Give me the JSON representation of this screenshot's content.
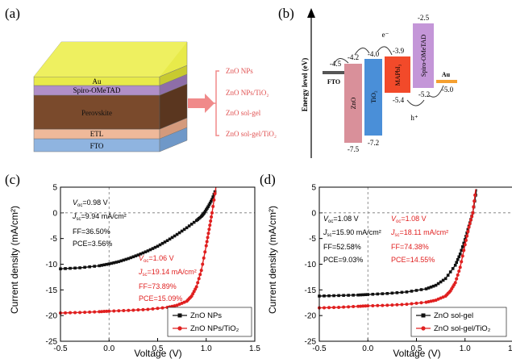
{
  "panels": {
    "a": {
      "label": "(a)",
      "layers": [
        "Au",
        "Spiro-OMeTAD",
        "Perovskite",
        "ETL",
        "FTO"
      ],
      "etl_options": [
        "ZnO NPs",
        "ZnO NPs/TiO₂",
        "ZnO sol-gel",
        "ZnO sol-gel/TiO₂"
      ],
      "colors": {
        "au": "#e8ea4a",
        "spiro": "#b08fc8",
        "perovskite": "#7a4a2c",
        "etl": "#efb99a",
        "fto": "#8fb4e0",
        "arrow": "#f08a8a"
      }
    },
    "b": {
      "label": "(b)",
      "ylabel": "Energy level (eV)",
      "carriers": {
        "electron": "e⁻",
        "hole": "h⁺"
      },
      "materials": [
        {
          "name": "FTO",
          "top": -4.5,
          "bottom": null,
          "color": "#555555",
          "top_label": "-4.5",
          "bottom_label": ""
        },
        {
          "name": "ZnO",
          "top": -4.2,
          "bottom": -7.5,
          "color": "#d9909a",
          "top_label": "-4.2",
          "bottom_label": "-7.5"
        },
        {
          "name": "TiO₂",
          "top": -4.0,
          "bottom": -7.2,
          "color": "#4a8fd8",
          "top_label": "-4.0",
          "bottom_label": "-7.2"
        },
        {
          "name": "MAPbI₃",
          "top": -3.9,
          "bottom": -5.4,
          "color": "#f24a2a",
          "top_label": "-3.9",
          "bottom_label": "-5.4"
        },
        {
          "name": "Spiro-OMeTAD",
          "top": -2.5,
          "bottom": -5.2,
          "color": "#c496d8",
          "top_label": "-2.5",
          "bottom_label": "-5.2"
        },
        {
          "name": "Au",
          "top": -5.0,
          "bottom": null,
          "color": "#f5a030",
          "top_label": "",
          "bottom_label": "-5.0"
        }
      ]
    },
    "c": {
      "label": "(c)",
      "ann1": {
        "voc_val": "=0.98 V",
        "jsc_val": "=9.94 mA/cm²",
        "ff": "FF=36.50%",
        "pce": "PCE=3.56%"
      },
      "ann2": {
        "voc_val": "=1.06 V",
        "jsc_val": "=19.14 mA/cm²",
        "ff": "FF=73.89%",
        "pce": "PCE=15.09%"
      }
    },
    "d": {
      "label": "(d)",
      "ann1": {
        "voc_val": "=1.08 V",
        "jsc_val": "=15.90 mA/cm²",
        "ff": "FF=52.58%",
        "pce": "PCE=9.03%"
      },
      "ann2": {
        "voc_val": "=1.08 V",
        "jsc_val": "=18.11 mA/cm²",
        "ff": "FF=74.38%",
        "pce": "PCE=14.55%"
      }
    }
  },
  "chart_data": [
    {
      "type": "line",
      "panel": "c",
      "xlabel": "Voltage (V)",
      "ylabel": "Current density (mA/cm²)",
      "xlim": [
        -0.5,
        1.5
      ],
      "ylim": [
        -25,
        5
      ],
      "xticks": [
        -0.5,
        0.0,
        0.5,
        1.0,
        1.5
      ],
      "yticks": [
        5,
        0,
        -5,
        -10,
        -15,
        -20,
        -25
      ],
      "legend_position": "bottom-right",
      "series": [
        {
          "name": "ZnO NPs",
          "color": "#111111",
          "x": [
            -0.5,
            -0.3,
            -0.1,
            0.0,
            0.1,
            0.2,
            0.3,
            0.4,
            0.5,
            0.6,
            0.7,
            0.8,
            0.9,
            0.95,
            0.98,
            1.02,
            1.06,
            1.1
          ],
          "y": [
            -10.9,
            -10.7,
            -10.3,
            -9.94,
            -9.5,
            -8.9,
            -8.2,
            -7.4,
            -6.5,
            -5.4,
            -4.2,
            -2.9,
            -1.5,
            -0.7,
            0.0,
            1.2,
            2.6,
            4.6
          ]
        },
        {
          "name": "ZnO NPs/TiO₂",
          "color": "#e02020",
          "x": [
            -0.5,
            -0.3,
            -0.1,
            0.0,
            0.2,
            0.4,
            0.6,
            0.7,
            0.8,
            0.85,
            0.9,
            0.95,
            1.0,
            1.03,
            1.06,
            1.1
          ],
          "y": [
            -19.5,
            -19.4,
            -19.25,
            -19.14,
            -19.0,
            -18.8,
            -18.4,
            -18.0,
            -17.2,
            -16.2,
            -14.4,
            -11.2,
            -6.4,
            -3.2,
            0.0,
            5.0
          ]
        }
      ]
    },
    {
      "type": "line",
      "panel": "d",
      "xlabel": "Voltage (V)",
      "ylabel": "Current density (mA/cm²)",
      "xlim": [
        -0.5,
        1.5
      ],
      "ylim": [
        -25,
        5
      ],
      "xticks": [
        -0.5,
        0.0,
        0.5,
        1.0,
        1.5
      ],
      "yticks": [
        5,
        0,
        -5,
        -10,
        -15,
        -20,
        -25
      ],
      "legend_position": "bottom-right",
      "series": [
        {
          "name": "ZnO sol-gel",
          "color": "#111111",
          "x": [
            -0.5,
            -0.3,
            -0.1,
            0.0,
            0.2,
            0.4,
            0.6,
            0.7,
            0.8,
            0.9,
            0.95,
            1.0,
            1.04,
            1.08,
            1.12
          ],
          "y": [
            -16.2,
            -16.1,
            -16.0,
            -15.9,
            -15.7,
            -15.4,
            -14.8,
            -14.1,
            -12.8,
            -10.2,
            -8.0,
            -5.2,
            -2.6,
            0.0,
            4.6
          ]
        },
        {
          "name": "ZnO sol-gel/TiO₂",
          "color": "#e02020",
          "x": [
            -0.5,
            -0.3,
            -0.1,
            0.0,
            0.2,
            0.4,
            0.6,
            0.7,
            0.8,
            0.85,
            0.9,
            0.95,
            1.0,
            1.04,
            1.08,
            1.11
          ],
          "y": [
            -18.5,
            -18.4,
            -18.2,
            -18.11,
            -18.0,
            -17.8,
            -17.4,
            -17.0,
            -16.2,
            -15.2,
            -13.6,
            -10.6,
            -6.2,
            -2.8,
            0.0,
            4.6
          ]
        }
      ]
    }
  ]
}
